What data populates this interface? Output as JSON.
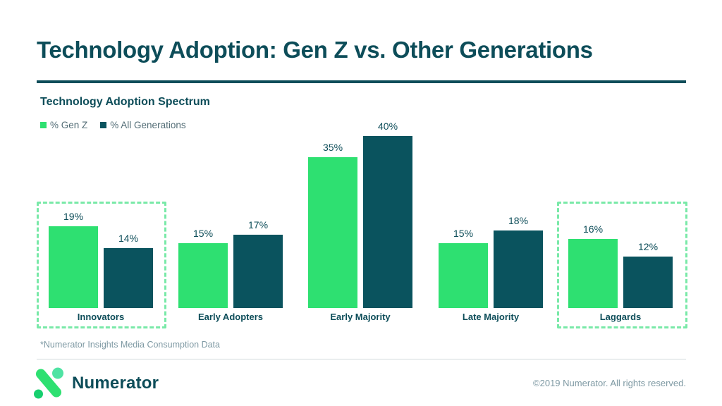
{
  "header": {
    "title": "Technology Adoption: Gen Z vs. Other Generations"
  },
  "chart_data": {
    "type": "bar",
    "title": "Technology Adoption Spectrum",
    "categories": [
      "Innovators",
      "Early Adopters",
      "Early Majority",
      "Late Majority",
      "Laggards"
    ],
    "series": [
      {
        "name": "% Gen Z",
        "color": "#2ee071",
        "values": [
          19,
          15,
          35,
          15,
          16
        ]
      },
      {
        "name": "% All Generations",
        "color": "#0a535e",
        "values": [
          14,
          17,
          40,
          18,
          12
        ]
      }
    ],
    "unit": "%",
    "value_labels_shown": true,
    "axis_shown": false,
    "grid": false,
    "legend_position": "top-left",
    "highlighted_categories": [
      "Innovators",
      "Laggards"
    ],
    "highlight_style_color": "#79e9a8"
  },
  "footnote": "*Numerator Insights Media Consumption Data",
  "footer": {
    "brand_name": "Numerator",
    "copyright": "©2019 Numerator. All rights reserved."
  },
  "colors": {
    "heading_teal": "#0d4d59",
    "bar_green": "#2ee071",
    "bar_dark_teal": "#0a535e",
    "highlight_dash_green": "#79e9a8",
    "muted_text": "#7e99a3"
  }
}
